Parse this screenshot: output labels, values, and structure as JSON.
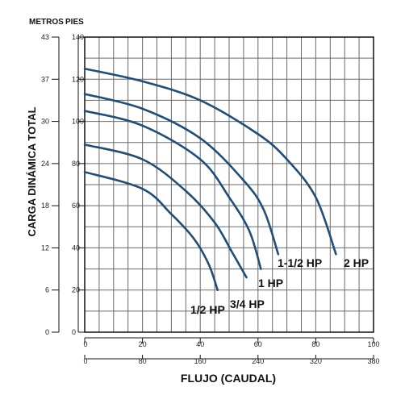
{
  "chart_data": {
    "type": "line",
    "ylabel": "CARGA DINÁMICA TOTAL",
    "xlabel": "FLUJO (CAUDAL)",
    "y_unit_left": "METROS",
    "y_unit_right": "PIES",
    "x_ticks_top": [
      "0",
      "20",
      "40",
      "60",
      "80",
      "100"
    ],
    "x_ticks_bottom": [
      "0",
      "80",
      "160",
      "240",
      "320",
      "380"
    ],
    "y_ticks_metros": [
      "0",
      "6",
      "12",
      "18",
      "24",
      "30",
      "37",
      "43"
    ],
    "y_ticks_pies": [
      "0",
      "20",
      "40",
      "60",
      "80",
      "100",
      "120",
      "140"
    ],
    "xlim": [
      0,
      100
    ],
    "ylim": [
      0,
      140
    ],
    "grid": true,
    "series": [
      {
        "name": "2 HP",
        "x": [
          0,
          20,
          40,
          60,
          70,
          80,
          87
        ],
        "y": [
          125,
          119,
          110,
          94,
          82,
          64,
          37
        ]
      },
      {
        "name": "1-1/2 HP",
        "x": [
          0,
          20,
          40,
          55,
          62,
          67
        ],
        "y": [
          113,
          106,
          92,
          72,
          58,
          37
        ]
      },
      {
        "name": "1 HP",
        "x": [
          0,
          20,
          40,
          50,
          57,
          61
        ],
        "y": [
          105,
          98,
          82,
          64,
          48,
          30
        ]
      },
      {
        "name": "3/4 HP",
        "x": [
          0,
          20,
          35,
          45,
          51,
          56
        ],
        "y": [
          89,
          82,
          67,
          52,
          38,
          26
        ]
      },
      {
        "name": "1/2 HP",
        "x": [
          0,
          20,
          30,
          38,
          43,
          46
        ],
        "y": [
          76,
          68,
          56,
          44,
          32,
          20
        ]
      }
    ]
  }
}
